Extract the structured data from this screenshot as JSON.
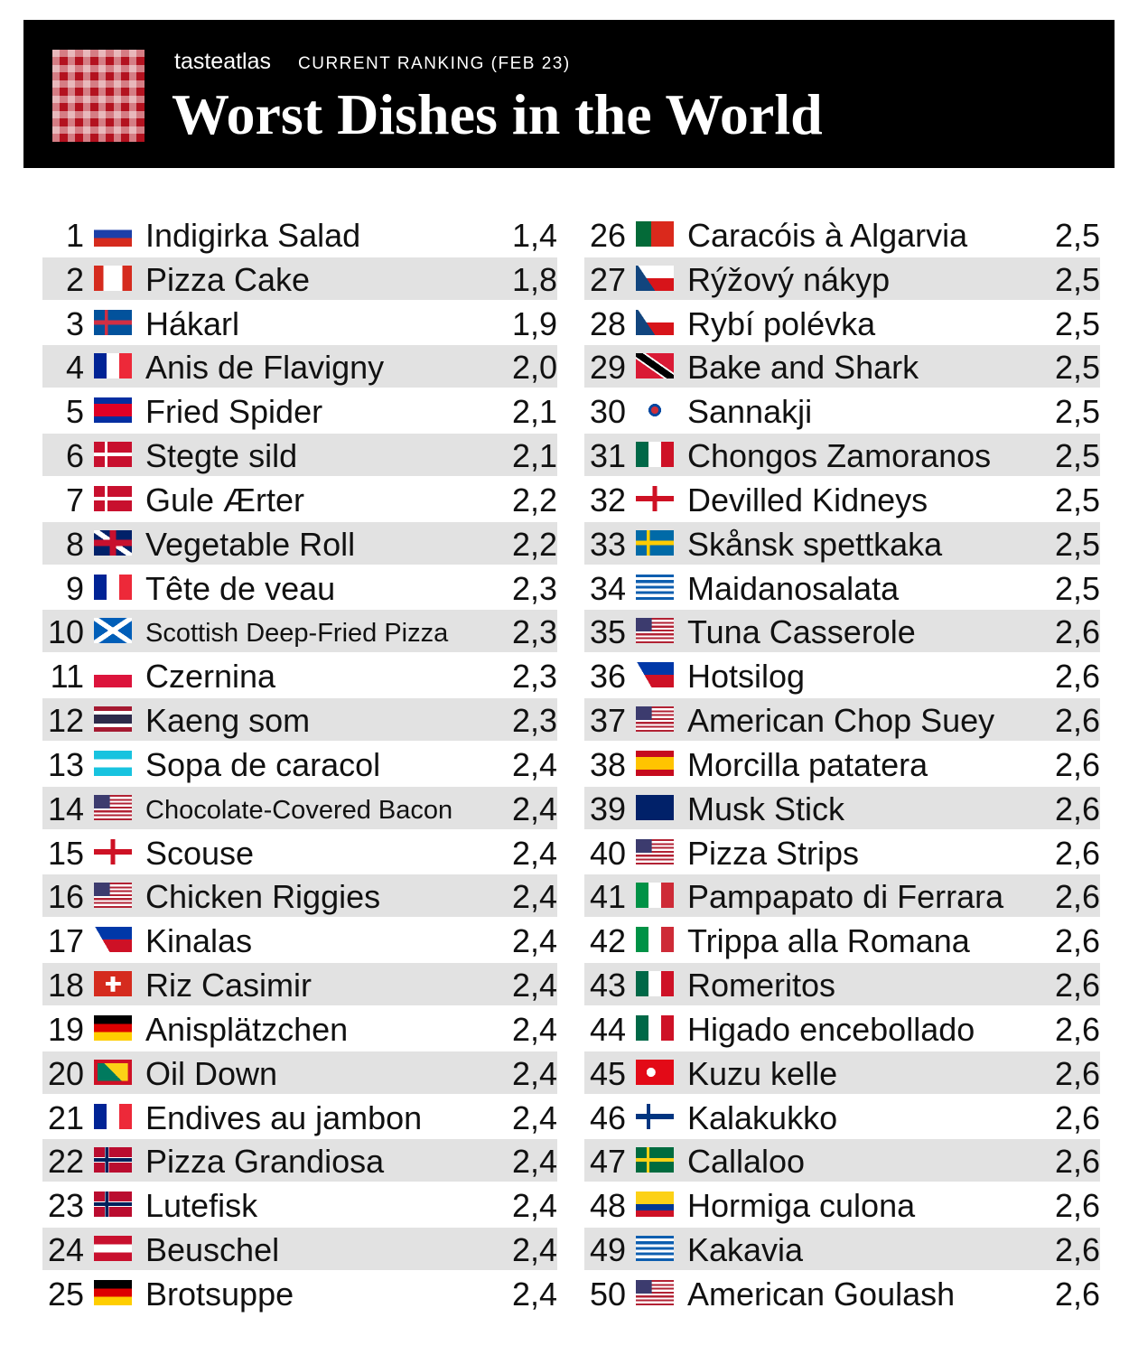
{
  "header": {
    "brand": "tasteatlas",
    "subtitle": "CURRENT RANKING (FEB 23)",
    "title": "Worst Dishes in the World"
  },
  "table": {
    "rows": [
      [
        1,
        "Indigirka Salad",
        "1,4"
      ],
      [
        2,
        "Pizza Cake",
        "1,8"
      ],
      [
        3,
        "Hákarl",
        "1,9"
      ],
      [
        4,
        "Anis de Flavigny",
        "2,0"
      ],
      [
        5,
        "Fried Spider",
        "2,1"
      ],
      [
        6,
        "Stegte sild",
        "2,1"
      ],
      [
        7,
        "Gule Ærter",
        "2,2"
      ],
      [
        8,
        "Vegetable Roll",
        "2,2"
      ],
      [
        9,
        "Tête de veau",
        "2,3"
      ],
      [
        10,
        "Scottish Deep-Fried Pizza",
        "2,3"
      ],
      [
        11,
        "Czernina",
        "2,3"
      ],
      [
        12,
        "Kaeng som",
        "2,3"
      ],
      [
        13,
        "Sopa de caracol",
        "2,4"
      ],
      [
        14,
        "Chocolate-Covered Bacon",
        "2,4"
      ],
      [
        15,
        "Scouse",
        "2,4"
      ],
      [
        16,
        "Chicken Riggies",
        "2,4"
      ],
      [
        17,
        "Kinalas",
        "2,4"
      ],
      [
        18,
        "Riz Casimir",
        "2,4"
      ],
      [
        19,
        "Anisplätzchen",
        "2,4"
      ],
      [
        20,
        "Oil Down",
        "2,4"
      ],
      [
        21,
        "Endives au jambon",
        "2,4"
      ],
      [
        22,
        "Pizza Grandiosa",
        "2,4"
      ],
      [
        23,
        "Lutefisk",
        "2,4"
      ],
      [
        24,
        "Beuschel",
        "2,4"
      ],
      [
        25,
        "Brotsuppe",
        "2,4"
      ],
      [
        26,
        "Caracóis à Algarvia",
        "2,5"
      ],
      [
        27,
        "Rýžový nákyp",
        "2,5"
      ],
      [
        28,
        "Rybí polévka",
        "2,5"
      ],
      [
        29,
        "Bake and Shark",
        "2,5"
      ],
      [
        30,
        "Sannakji",
        "2,5"
      ],
      [
        31,
        "Chongos Zamoranos",
        "2,5"
      ],
      [
        32,
        "Devilled Kidneys",
        "2,5"
      ],
      [
        33,
        "Skånsk spettkaka",
        "2,5"
      ],
      [
        34,
        "Maidanosalata",
        "2,5"
      ],
      [
        35,
        "Tuna Casserole",
        "2,6"
      ],
      [
        36,
        "Hotsilog",
        "2,6"
      ],
      [
        37,
        "American Chop Suey",
        "2,6"
      ],
      [
        38,
        "Morcilla patatera",
        "2,6"
      ],
      [
        39,
        "Musk Stick",
        "2,6"
      ],
      [
        40,
        "Pizza Strips",
        "2,6"
      ],
      [
        41,
        "Pampapato di Ferrara",
        "2,6"
      ],
      [
        42,
        "Trippa alla Romana",
        "2,6"
      ],
      [
        43,
        "Romeritos",
        "2,6"
      ],
      [
        44,
        "Higado encebollado",
        "2,6"
      ],
      [
        45,
        "Kuzu kelle",
        "2,6"
      ],
      [
        46,
        "Kalakukko",
        "2,6"
      ],
      [
        47,
        "Callaloo",
        "2,6"
      ],
      [
        48,
        "Hormiga culona",
        "2,6"
      ],
      [
        49,
        "Kakavia",
        "2,6"
      ],
      [
        50,
        "American Goulash",
        "2,6"
      ]
    ]
  }
}
